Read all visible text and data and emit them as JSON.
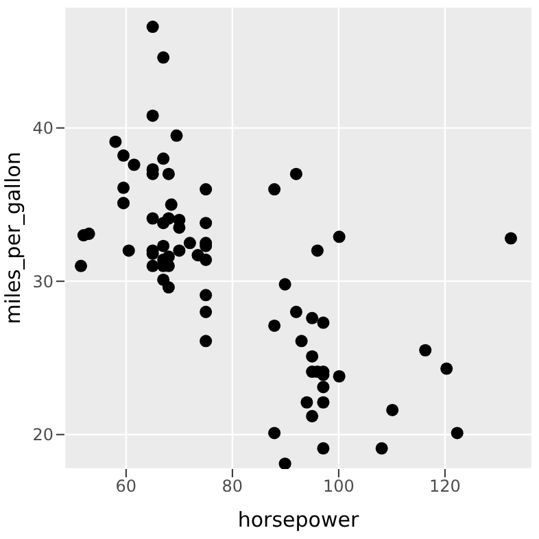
{
  "chart_data": {
    "type": "scatter",
    "xlabel": "horsepower",
    "ylabel": "miles_per_gallon",
    "xlim": [
      48.4,
      136.4
    ],
    "ylim": [
      17.75,
      47.9
    ],
    "xticks": [
      60,
      80,
      100,
      120
    ],
    "yticks": [
      20,
      30,
      40
    ],
    "grid": true,
    "marker": "circle",
    "legend": false,
    "series": [
      {
        "color": "#000000",
        "x": [
          65,
          67,
          65,
          58,
          69.5,
          59.5,
          67,
          61.5,
          65,
          65,
          68,
          75,
          59.5,
          59.5,
          68.5,
          65,
          67,
          68,
          70,
          70,
          75,
          52,
          53,
          72,
          75,
          75,
          60.5,
          65,
          65,
          67,
          70,
          73.5,
          75,
          67,
          68,
          51.5,
          65,
          67,
          68,
          67,
          68,
          75,
          75,
          75,
          92,
          87.9,
          100.1,
          96,
          132.4,
          89.9,
          92,
          95,
          97.1,
          87.9,
          93,
          95,
          116.3,
          120.3,
          95,
          96,
          97.1,
          97.1,
          100.1,
          97.1,
          94,
          97.1,
          110.1,
          95,
          87.9,
          122.3,
          97.1,
          108.1,
          89.9
        ],
        "values": [
          46.6,
          44.6,
          40.8,
          39.1,
          39.5,
          38.2,
          38,
          37.6,
          37.3,
          37,
          37,
          36,
          36.1,
          35.1,
          35,
          34.1,
          33.8,
          34.1,
          34,
          33.5,
          33.8,
          33,
          33.1,
          32.5,
          32.5,
          32.3,
          32,
          32,
          31.8,
          32.3,
          32,
          31.7,
          31.4,
          31.4,
          31.6,
          31,
          31,
          31,
          31,
          30.1,
          29.6,
          29.1,
          28,
          26.1,
          37,
          36,
          32.9,
          32,
          32.8,
          29.8,
          28,
          27.6,
          27.3,
          27.1,
          26.1,
          25.1,
          25.5,
          24.3,
          24.1,
          24.1,
          24.1,
          23.9,
          23.8,
          23.1,
          22.1,
          22.1,
          21.6,
          21.2,
          20.1,
          20.1,
          19.1,
          19.1,
          18.1
        ]
      }
    ]
  }
}
